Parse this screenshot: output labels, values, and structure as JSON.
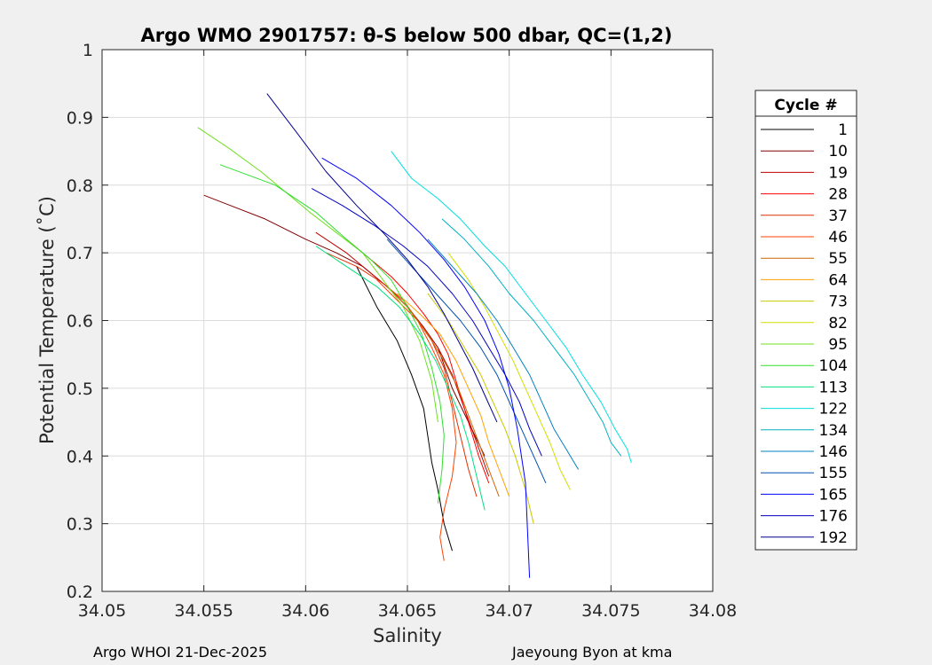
{
  "chart_data": {
    "type": "line",
    "title": "Argo WMO 2901757: θ-S below 500 dbar,  QC=(1,2)",
    "xlabel": "Salinity",
    "ylabel": "Potential Temperature (˚C)",
    "xlim": [
      34.05,
      34.08
    ],
    "ylim": [
      0.2,
      1.0
    ],
    "xticks": [
      "34.05",
      "34.055",
      "34.06",
      "34.065",
      "34.07",
      "34.075",
      "34.08"
    ],
    "yticks": [
      "0.2",
      "0.3",
      "0.4",
      "0.5",
      "0.6",
      "0.7",
      "0.8",
      "0.9",
      "1"
    ],
    "grid": true,
    "legend": {
      "title": "Cycle #",
      "position": "outside-right",
      "entries": [
        "1",
        "10",
        "19",
        "28",
        "37",
        "46",
        "55",
        "64",
        "73",
        "82",
        "95",
        "104",
        "113",
        "122",
        "134",
        "146",
        "155",
        "165",
        "176",
        "192"
      ],
      "colors": [
        "#000000",
        "#800000",
        "#c00000",
        "#ff0000",
        "#e03000",
        "#ff4000",
        "#cc6600",
        "#ffa000",
        "#c8c800",
        "#d0e000",
        "#70e020",
        "#30e030",
        "#00e080",
        "#00e0e0",
        "#00b0c0",
        "#0080c0",
        "#0050b0",
        "#0000ff",
        "#0000c0",
        "#000090"
      ]
    },
    "series": [
      {
        "name": "1",
        "color": "#000000",
        "x": [
          34.0625,
          34.0635,
          34.0645,
          34.0652,
          34.0658,
          34.066,
          34.0662,
          34.0665,
          34.0668,
          34.0672
        ],
        "y": [
          0.68,
          0.62,
          0.57,
          0.52,
          0.47,
          0.43,
          0.39,
          0.35,
          0.3,
          0.26
        ]
      },
      {
        "name": "10",
        "color": "#800000",
        "x": [
          34.055,
          34.058,
          34.06,
          34.0615,
          34.0628,
          34.064,
          34.065,
          34.0658,
          34.0665,
          34.0672,
          34.068,
          34.0688
        ],
        "y": [
          0.785,
          0.75,
          0.72,
          0.7,
          0.68,
          0.65,
          0.62,
          0.59,
          0.56,
          0.5,
          0.45,
          0.4
        ]
      },
      {
        "name": "19",
        "color": "#c00000",
        "x": [
          34.0605,
          34.062,
          34.0632,
          34.0642,
          34.065,
          34.0658,
          34.0665,
          34.0672,
          34.0678,
          34.0684,
          34.069
        ],
        "y": [
          0.73,
          0.7,
          0.67,
          0.645,
          0.62,
          0.59,
          0.56,
          0.52,
          0.47,
          0.42,
          0.37
        ]
      },
      {
        "name": "28",
        "color": "#ff0000",
        "x": [
          34.062,
          34.0632,
          34.0642,
          34.065,
          34.0658,
          34.0665,
          34.067,
          34.0675,
          34.068,
          34.0685,
          34.069
        ],
        "y": [
          0.72,
          0.69,
          0.665,
          0.64,
          0.61,
          0.58,
          0.55,
          0.5,
          0.45,
          0.4,
          0.36
        ]
      },
      {
        "name": "37",
        "color": "#e03000",
        "x": [
          34.061,
          34.0625,
          34.0638,
          34.0648,
          34.0655,
          34.0662,
          34.0668,
          34.0672,
          34.0676,
          34.068,
          34.0684
        ],
        "y": [
          0.7,
          0.68,
          0.655,
          0.63,
          0.6,
          0.57,
          0.53,
          0.48,
          0.43,
          0.38,
          0.34
        ]
      },
      {
        "name": "46",
        "color": "#ff4000",
        "x": [
          34.0635,
          34.0645,
          34.0655,
          34.0662,
          34.0668,
          34.0672,
          34.0674,
          34.0672,
          34.0668,
          34.0666,
          34.0668
        ],
        "y": [
          0.66,
          0.63,
          0.6,
          0.56,
          0.52,
          0.47,
          0.42,
          0.37,
          0.32,
          0.28,
          0.245
        ]
      },
      {
        "name": "55",
        "color": "#cc6600",
        "x": [
          34.064,
          34.065,
          34.066,
          34.0668,
          34.0675,
          34.068,
          34.0685,
          34.069,
          34.0695
        ],
        "y": [
          0.65,
          0.62,
          0.58,
          0.54,
          0.5,
          0.46,
          0.42,
          0.38,
          0.34
        ]
      },
      {
        "name": "64",
        "color": "#ffa000",
        "x": [
          34.0645,
          34.0656,
          34.0666,
          34.0674,
          34.068,
          34.0686,
          34.069,
          34.0695,
          34.07
        ],
        "y": [
          0.64,
          0.61,
          0.58,
          0.54,
          0.5,
          0.46,
          0.42,
          0.38,
          0.34
        ]
      },
      {
        "name": "73",
        "color": "#c8c800",
        "x": [
          34.066,
          34.067,
          34.0678,
          34.0686,
          34.0692,
          34.0698,
          34.0703,
          34.0708,
          34.0712
        ],
        "y": [
          0.64,
          0.6,
          0.56,
          0.52,
          0.48,
          0.44,
          0.4,
          0.35,
          0.3
        ]
      },
      {
        "name": "82",
        "color": "#d0e000",
        "x": [
          34.067,
          34.068,
          34.0688,
          34.0695,
          34.0702,
          34.0708,
          34.0714,
          34.072,
          34.0725,
          34.073
        ],
        "y": [
          0.7,
          0.66,
          0.62,
          0.58,
          0.54,
          0.5,
          0.46,
          0.42,
          0.38,
          0.35
        ]
      },
      {
        "name": "95",
        "color": "#70e020",
        "x": [
          34.0547,
          34.0562,
          34.0578,
          34.059,
          34.0602,
          34.0615,
          34.0628,
          34.0638,
          34.0648,
          34.0656,
          34.0662,
          34.0665
        ],
        "y": [
          0.885,
          0.855,
          0.82,
          0.79,
          0.76,
          0.73,
          0.7,
          0.66,
          0.62,
          0.57,
          0.51,
          0.45
        ]
      },
      {
        "name": "104",
        "color": "#30e030",
        "x": [
          34.0558,
          34.0585,
          34.0605,
          34.062,
          34.0632,
          34.0642,
          34.065,
          34.0657,
          34.0662,
          34.0666,
          34.0668,
          34.0667,
          34.0665
        ],
        "y": [
          0.83,
          0.8,
          0.76,
          0.72,
          0.69,
          0.66,
          0.62,
          0.58,
          0.53,
          0.48,
          0.43,
          0.38,
          0.33
        ]
      },
      {
        "name": "113",
        "color": "#00e080",
        "x": [
          34.0605,
          34.062,
          34.0635,
          34.0646,
          34.0656,
          34.0664,
          34.067,
          34.0676,
          34.068,
          34.0684,
          34.0688
        ],
        "y": [
          0.71,
          0.68,
          0.65,
          0.62,
          0.58,
          0.54,
          0.5,
          0.46,
          0.42,
          0.37,
          0.32
        ]
      },
      {
        "name": "122",
        "color": "#00e0e0",
        "x": [
          34.0642,
          34.0652,
          34.0665,
          34.0676,
          34.0688,
          34.0698,
          34.0708,
          34.0718,
          34.0728,
          34.0736,
          34.0745,
          34.0752,
          34.0758,
          34.076
        ],
        "y": [
          0.85,
          0.81,
          0.78,
          0.75,
          0.71,
          0.68,
          0.64,
          0.6,
          0.56,
          0.52,
          0.48,
          0.44,
          0.41,
          0.39
        ]
      },
      {
        "name": "134",
        "color": "#00b0c0",
        "x": [
          34.0667,
          34.0678,
          34.069,
          34.07,
          34.0712,
          34.0722,
          34.0732,
          34.074,
          34.0746,
          34.075,
          34.0755
        ],
        "y": [
          0.75,
          0.72,
          0.68,
          0.64,
          0.6,
          0.56,
          0.52,
          0.48,
          0.45,
          0.42,
          0.4
        ]
      },
      {
        "name": "146",
        "color": "#0080c0",
        "x": [
          34.066,
          34.0672,
          34.0684,
          34.0694,
          34.0702,
          34.071,
          34.0716,
          34.0722,
          34.0728,
          34.0734
        ],
        "y": [
          0.72,
          0.68,
          0.64,
          0.6,
          0.56,
          0.52,
          0.48,
          0.44,
          0.41,
          0.38
        ]
      },
      {
        "name": "155",
        "color": "#0050b0",
        "x": [
          34.064,
          34.0652,
          34.0664,
          34.0676,
          34.0686,
          34.0694,
          34.07,
          34.0706,
          34.0712,
          34.0718
        ],
        "y": [
          0.72,
          0.68,
          0.64,
          0.6,
          0.56,
          0.52,
          0.48,
          0.44,
          0.4,
          0.36
        ]
      },
      {
        "name": "165",
        "color": "#0000ff",
        "x": [
          34.0608,
          34.0625,
          34.0642,
          34.0656,
          34.0668,
          34.0678,
          34.0688,
          34.0695,
          34.07,
          34.0704,
          34.0708,
          34.071
        ],
        "y": [
          0.84,
          0.81,
          0.77,
          0.73,
          0.69,
          0.65,
          0.6,
          0.55,
          0.5,
          0.44,
          0.36,
          0.22
        ]
      },
      {
        "name": "176",
        "color": "#0000c0",
        "x": [
          34.0603,
          34.0618,
          34.0634,
          34.0648,
          34.066,
          34.0672,
          34.0682,
          34.069,
          34.0698,
          34.0705,
          34.071,
          34.0716
        ],
        "y": [
          0.795,
          0.77,
          0.74,
          0.71,
          0.68,
          0.64,
          0.6,
          0.56,
          0.52,
          0.48,
          0.44,
          0.4
        ]
      },
      {
        "name": "192",
        "color": "#000090",
        "x": [
          34.0581,
          34.0595,
          34.061,
          34.0625,
          34.0638,
          34.065,
          34.066,
          34.0668,
          34.0675,
          34.0682,
          34.0688,
          34.0694
        ],
        "y": [
          0.935,
          0.88,
          0.82,
          0.77,
          0.73,
          0.69,
          0.65,
          0.61,
          0.57,
          0.53,
          0.49,
          0.45
        ]
      }
    ]
  },
  "footer": {
    "left": "Argo WHOI 21-Dec-2025",
    "right": "Jaeyoung Byon at kma"
  }
}
